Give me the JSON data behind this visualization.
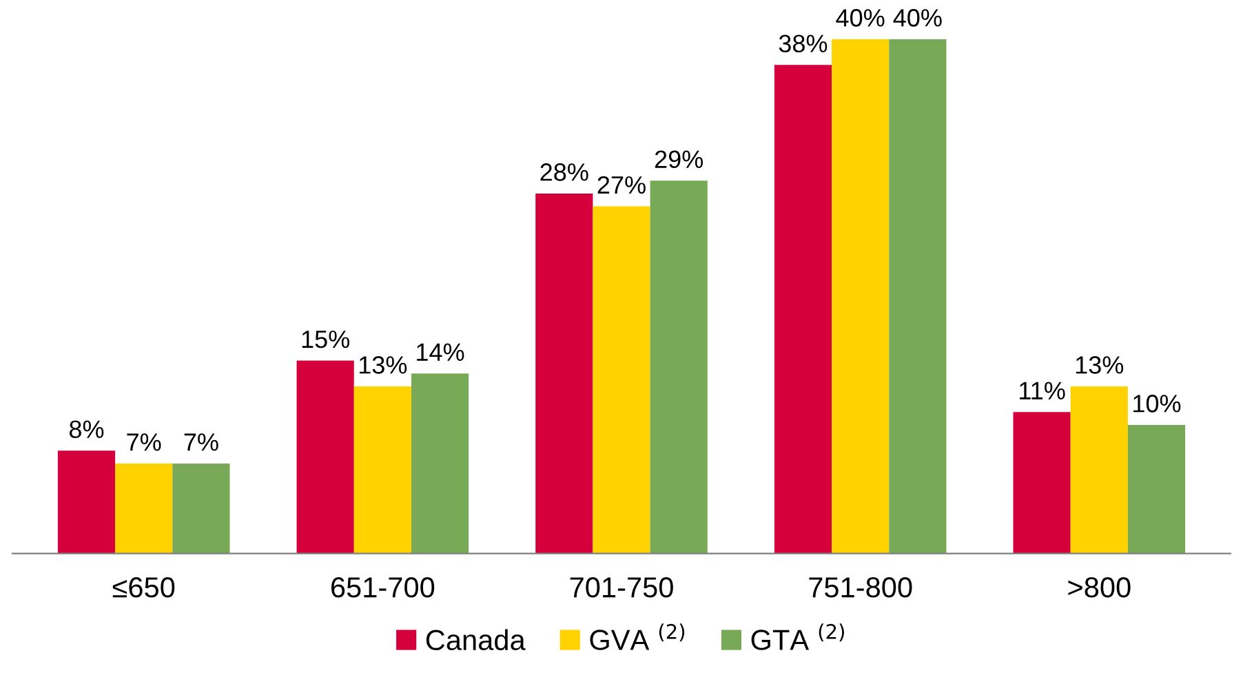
{
  "chart_data": {
    "type": "bar",
    "categories": [
      "≤650",
      "651-700",
      "701-750",
      "751-800",
      ">800"
    ],
    "series": [
      {
        "name": "Canada",
        "color": "#d5003b",
        "values": [
          8,
          15,
          28,
          38,
          11
        ],
        "value_labels": [
          "8%",
          "15%",
          "28%",
          "38%",
          "11%"
        ]
      },
      {
        "name": "GVA $^{(2)}$",
        "color": "#ffd200",
        "values": [
          7,
          13,
          27,
          40,
          13
        ],
        "value_labels": [
          "7%",
          "13%",
          "27%",
          "40%",
          "13%"
        ]
      },
      {
        "name": "GTA $^{(2)}$",
        "color": "#77a956",
        "values": [
          7,
          14,
          29,
          40,
          10
        ],
        "value_labels": [
          "7%",
          "14%",
          "29%",
          "40%",
          "10%"
        ]
      }
    ],
    "legend": "bottom"
  }
}
